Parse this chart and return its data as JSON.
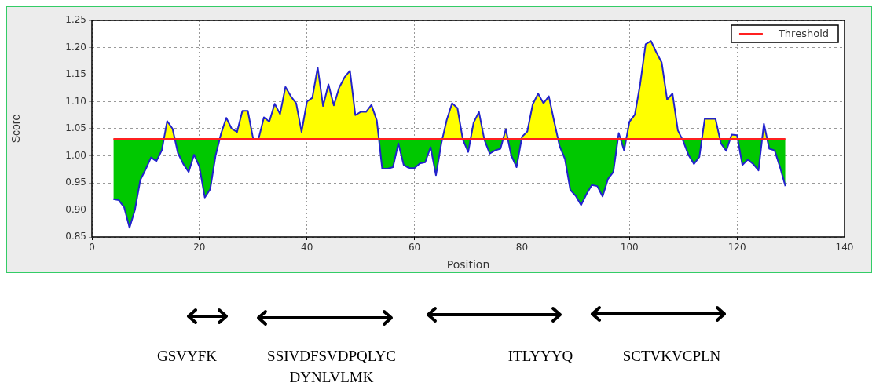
{
  "chart_data": {
    "type": "line",
    "xlabel": "Position",
    "ylabel": "Score",
    "x": [
      4,
      5,
      6,
      7,
      8,
      9,
      10,
      11,
      12,
      13,
      14,
      15,
      16,
      17,
      18,
      19,
      20,
      21,
      22,
      23,
      24,
      25,
      26,
      27,
      28,
      29,
      30,
      31,
      32,
      33,
      34,
      35,
      36,
      37,
      38,
      39,
      40,
      41,
      42,
      43,
      44,
      45,
      46,
      47,
      48,
      49,
      50,
      51,
      52,
      53,
      54,
      55,
      56,
      57,
      58,
      59,
      60,
      61,
      62,
      63,
      64,
      65,
      66,
      67,
      68,
      69,
      70,
      71,
      72,
      73,
      74,
      75,
      76,
      77,
      78,
      79,
      80,
      81,
      82,
      83,
      84,
      85,
      86,
      87,
      88,
      89,
      90,
      91,
      92,
      93,
      94,
      95,
      96,
      97,
      98,
      99,
      100,
      101,
      102,
      103,
      104,
      105,
      106,
      107,
      108,
      109,
      110,
      111,
      112,
      113,
      114,
      115,
      116,
      117,
      118,
      119,
      120,
      121,
      122,
      123,
      124,
      125,
      126,
      127,
      128,
      129
    ],
    "series": [
      {
        "color": "#2222cc",
        "values": [
          0.92,
          0.918,
          0.905,
          0.867,
          0.9,
          0.955,
          0.975,
          0.997,
          0.99,
          1.01,
          1.064,
          1.05,
          1.005,
          0.985,
          0.97,
          1.002,
          0.98,
          0.923,
          0.938,
          1.0,
          1.04,
          1.07,
          1.05,
          1.044,
          1.083,
          1.083,
          1.031,
          1.031,
          1.071,
          1.063,
          1.096,
          1.077,
          1.127,
          1.11,
          1.097,
          1.044,
          1.1,
          1.107,
          1.163,
          1.092,
          1.132,
          1.093,
          1.126,
          1.145,
          1.157,
          1.075,
          1.081,
          1.081,
          1.094,
          1.065,
          0.976,
          0.976,
          0.979,
          1.023,
          0.983,
          0.977,
          0.977,
          0.986,
          0.988,
          1.016,
          0.964,
          1.023,
          1.066,
          1.097,
          1.088,
          1.03,
          1.007,
          1.061,
          1.081,
          1.03,
          1.004,
          1.01,
          1.013,
          1.049,
          1.001,
          0.979,
          1.035,
          1.045,
          1.095,
          1.115,
          1.097,
          1.11,
          1.063,
          1.018,
          0.994,
          0.937,
          0.926,
          0.909,
          0.929,
          0.946,
          0.944,
          0.925,
          0.957,
          0.97,
          1.042,
          1.01,
          1.063,
          1.076,
          1.133,
          1.206,
          1.212,
          1.191,
          1.172,
          1.104,
          1.115,
          1.047,
          1.027,
          1.001,
          0.985,
          0.998,
          1.068,
          1.068,
          1.068,
          1.023,
          1.009,
          1.039,
          1.038,
          0.983,
          0.993,
          0.985,
          0.973,
          1.059,
          1.013,
          1.01,
          0.979,
          0.944
        ]
      }
    ],
    "ref_lines": [
      {
        "axis": "y",
        "value": 1.031,
        "label": "Threshold",
        "color": "#ff2020"
      }
    ],
    "xlim": [
      0,
      140
    ],
    "xticks": [
      0,
      20,
      40,
      60,
      80,
      100,
      120,
      140
    ],
    "ylim": [
      0.85,
      1.25
    ],
    "yticks": [
      0.85,
      {
        "value": 0.9,
        "label": "0.90"
      },
      0.95,
      {
        "value": 1,
        "label": "1.00"
      },
      1.05,
      {
        "value": 1.1,
        "label": "1.10"
      },
      1.15,
      {
        "value": 1.2,
        "label": "1.20"
      },
      1.25
    ],
    "grid": true,
    "legend": "top right",
    "marker": "none",
    "line_style": "solid",
    "annotations": [
      "GSVYFK",
      "SSIVDFSVDPQLYC DYNLVLMK",
      "ITLYYYQ",
      "SCTVKVCPLN"
    ]
  }
}
